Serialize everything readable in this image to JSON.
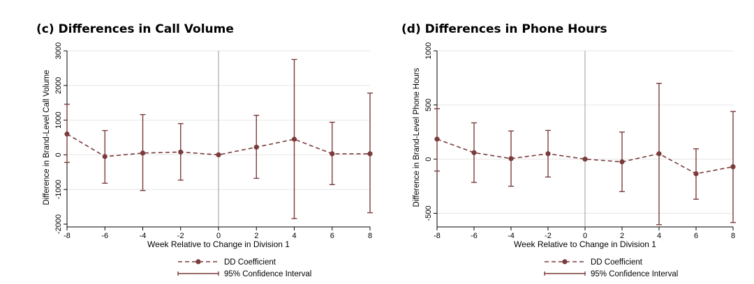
{
  "chart_data": [
    {
      "id": "c",
      "type": "line",
      "title": "(c) Differences in Call Volume",
      "xlabel": "Week Relative to Change in Division 1",
      "ylabel": "Difference in Brand-Level Call Volume",
      "xlim": [
        -8,
        8
      ],
      "ylim": [
        -2000,
        3000
      ],
      "xticks": [
        -8,
        -6,
        -4,
        -2,
        0,
        2,
        4,
        6,
        8
      ],
      "xtick_labels": [
        "-8",
        "-6",
        "-4",
        "-2",
        "0",
        "2",
        "4",
        "6",
        "8"
      ],
      "yticks": [
        -2000,
        -1000,
        0,
        1000,
        2000,
        3000
      ],
      "ytick_labels": [
        "-2000",
        "-1000",
        "0",
        "1000",
        "2000",
        "3000"
      ],
      "reference_line_x": 0,
      "series": [
        {
          "name": "DD Coefficient",
          "x": [
            -8,
            -6,
            -4,
            -2,
            0,
            2,
            4,
            6,
            8
          ],
          "values": [
            600,
            -50,
            50,
            80,
            0,
            220,
            450,
            30,
            30
          ]
        },
        {
          "name": "95% Confidence Interval",
          "x": [
            -8,
            -6,
            -4,
            -2,
            0,
            2,
            4,
            6,
            8
          ],
          "lower": [
            -220,
            -820,
            -1030,
            -730,
            0,
            -680,
            -1840,
            -860,
            -1670
          ],
          "upper": [
            1460,
            700,
            1160,
            900,
            0,
            1140,
            2750,
            940,
            1780
          ]
        }
      ],
      "legend": [
        "DD Coefficient",
        "95% Confidence Interval"
      ],
      "color": "#7b3b3b"
    },
    {
      "id": "d",
      "type": "line",
      "title": "(d) Differences in Phone Hours",
      "xlabel": "Week Relative to Change in Division 1",
      "ylabel": "Difference in Brand-Level Phone Hours",
      "xlim": [
        -8,
        8
      ],
      "ylim": [
        -600,
        1000
      ],
      "xticks": [
        -8,
        -6,
        -4,
        -2,
        0,
        2,
        4,
        6,
        8
      ],
      "xtick_labels": [
        "-8",
        "-6",
        "-4",
        "-2",
        "0",
        "2",
        "4",
        "6",
        "8"
      ],
      "yticks": [
        -500,
        0,
        500,
        1000
      ],
      "ytick_labels": [
        "-500",
        "0",
        "500",
        "1000"
      ],
      "reference_line_x": 0,
      "series": [
        {
          "name": "DD Coefficient",
          "x": [
            -8,
            -6,
            -4,
            -2,
            0,
            2,
            4,
            6,
            8
          ],
          "values": [
            185,
            60,
            5,
            50,
            0,
            -25,
            50,
            -135,
            -70
          ]
        },
        {
          "name": "95% Confidence Interval",
          "x": [
            -8,
            -6,
            -4,
            -2,
            0,
            2,
            4,
            6,
            8
          ],
          "lower": [
            -110,
            -215,
            -250,
            -165,
            0,
            -300,
            -605,
            -370,
            -585
          ],
          "upper": [
            465,
            335,
            260,
            265,
            0,
            250,
            700,
            95,
            440
          ]
        }
      ],
      "legend": [
        "DD Coefficient",
        "95% Confidence Interval"
      ],
      "color": "#7b3b3b"
    }
  ]
}
